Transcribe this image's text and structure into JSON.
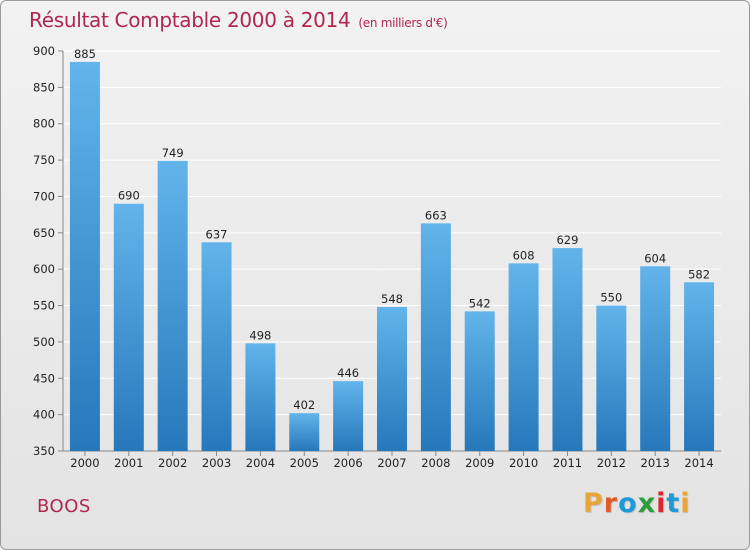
{
  "header": {
    "title": "Résultat Comptable 2000 à 2014",
    "subtitle": "(en milliers d'€)"
  },
  "place_name": "BOOS",
  "logo_text": "Proxiti",
  "logo_colors": [
    "#e8a53a",
    "#e05a28",
    "#1f9ad6",
    "#2a9e3a",
    "#d9292f",
    "#1f9ad6",
    "#e8a53a"
  ],
  "colors": {
    "bar_top": "#62b4ea",
    "bar_bottom": "#2678bb",
    "title": "#b0274f"
  },
  "chart_data": {
    "type": "bar",
    "title": "Résultat Comptable 2000 à 2014",
    "subtitle": "(en milliers d'€)",
    "xlabel": "",
    "ylabel": "",
    "ylim": [
      350,
      900
    ],
    "yticks": [
      350,
      400,
      450,
      500,
      550,
      600,
      650,
      700,
      750,
      800,
      850,
      900
    ],
    "grid": true,
    "categories": [
      "2000",
      "2001",
      "2002",
      "2003",
      "2004",
      "2005",
      "2006",
      "2007",
      "2008",
      "2009",
      "2010",
      "2011",
      "2012",
      "2013",
      "2014"
    ],
    "values": [
      885,
      690,
      749,
      637,
      498,
      402,
      446,
      548,
      663,
      542,
      608,
      629,
      550,
      604,
      582
    ]
  }
}
